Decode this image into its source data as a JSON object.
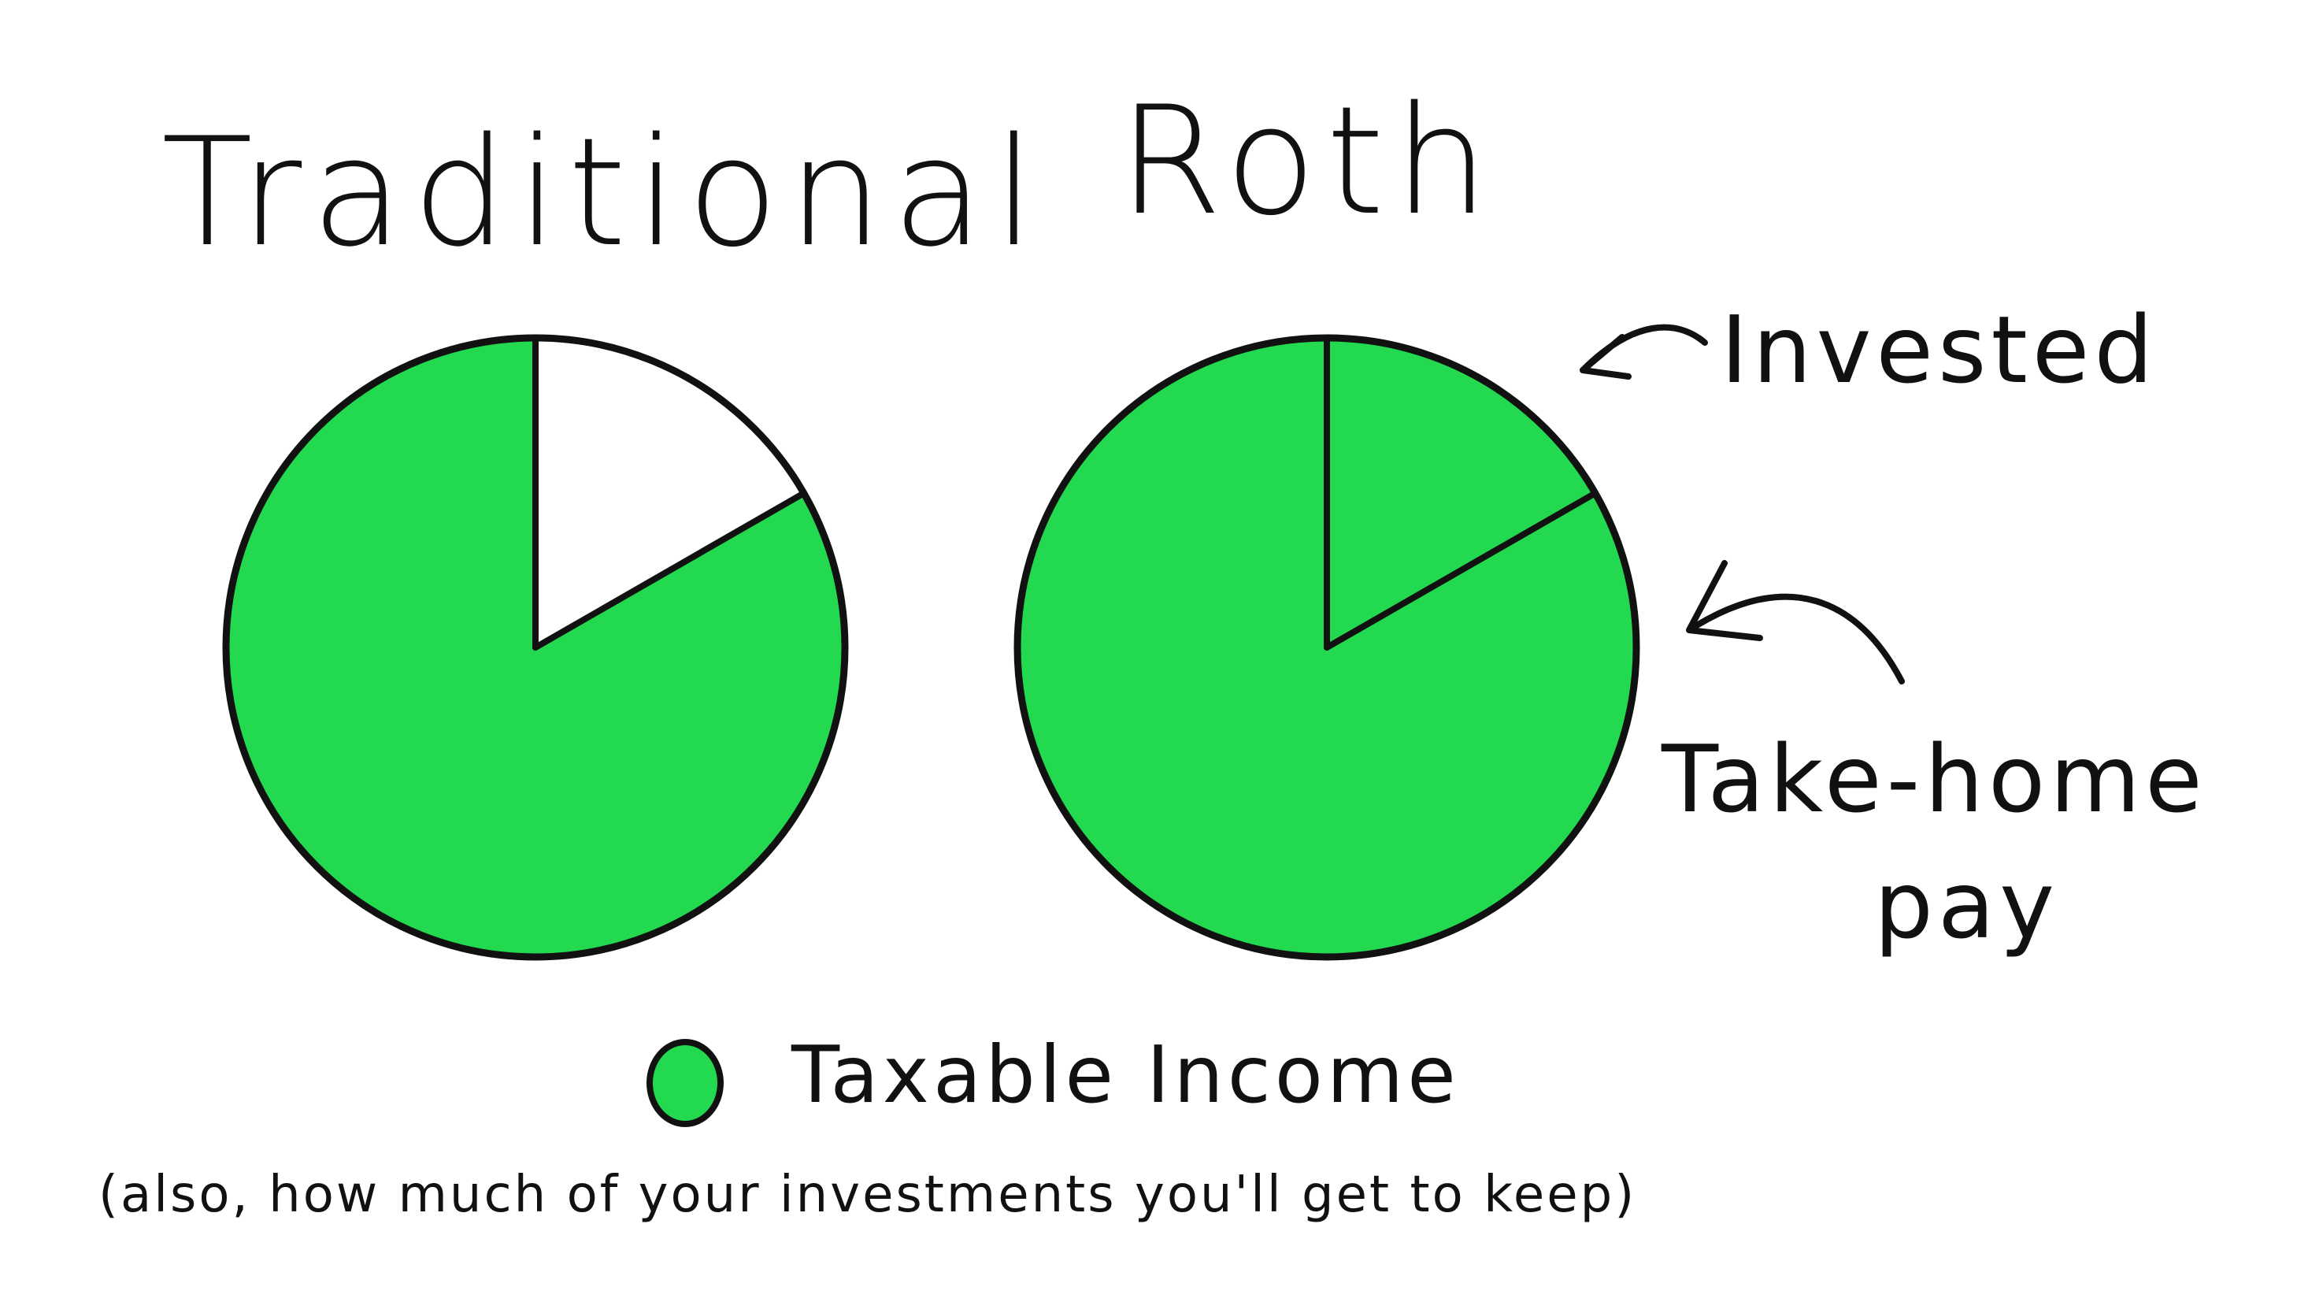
{
  "chart_data": [
    {
      "type": "pie",
      "title": "Traditional",
      "slices": [
        {
          "label": "Invested",
          "value": 16.7,
          "color": "#ffffff"
        },
        {
          "label": "Taxable Income",
          "value": 83.3,
          "color": "#22d94f"
        }
      ]
    },
    {
      "type": "pie",
      "title": "Roth",
      "slices": [
        {
          "label": "Invested",
          "value": 16.7,
          "color": "#22d94f"
        },
        {
          "label": "Take-home pay",
          "value": 83.3,
          "color": "#22d94f"
        }
      ]
    }
  ],
  "annotations": {
    "invested": "Invested",
    "take_home_line1": "Take-home",
    "take_home_line2": "pay"
  },
  "legend": {
    "label": "Taxable Income",
    "color": "#22d94f",
    "note": "(also, how much of your investments you'll get to keep)"
  },
  "colors": {
    "outline": "#111111",
    "green": "#22d94f"
  }
}
